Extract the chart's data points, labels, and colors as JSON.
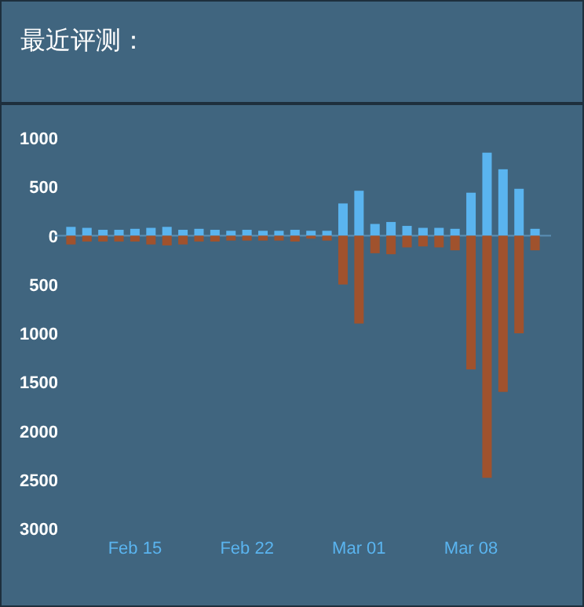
{
  "chart_data": {
    "type": "bar",
    "title": "最近评测：",
    "stacked": true,
    "ref_lines": [
      {
        "axis": "y",
        "value": 0,
        "color": "#5a8fb5"
      }
    ],
    "x": [
      "--02-11",
      "--02-12",
      "--02-13",
      "--02-14",
      "--02-15",
      "--02-16",
      "--02-17",
      "--02-18",
      "--02-19",
      "--02-20",
      "--02-21",
      "--02-22",
      "--02-23",
      "--02-24",
      "--02-25",
      "--02-26",
      "--02-27",
      "--02-28",
      "--03-01",
      "--03-02",
      "--03-03",
      "--03-04",
      "--03-05",
      "--03-06",
      "--03-07",
      "--03-08",
      "--03-09",
      "--03-10",
      "--03-11",
      "--03-12"
    ],
    "series": [
      {
        "color": "#5ab4ef",
        "values": [
          90,
          80,
          60,
          60,
          70,
          80,
          90,
          60,
          70,
          60,
          50,
          60,
          50,
          50,
          60,
          50,
          50,
          330,
          460,
          120,
          140,
          100,
          80,
          80,
          70,
          440,
          850,
          680,
          480,
          70
        ]
      },
      {
        "color": "#a0522d",
        "values": [
          -90,
          -60,
          -60,
          -60,
          -60,
          -90,
          -100,
          -90,
          -60,
          -60,
          -50,
          -50,
          -50,
          -50,
          -60,
          -30,
          -50,
          -500,
          -900,
          -180,
          -190,
          -120,
          -110,
          -120,
          -150,
          -1370,
          -2480,
          -1600,
          -1000,
          -150
        ]
      }
    ],
    "xlim": [
      "--02-10",
      "--03-13"
    ],
    "xticks": [
      {
        "value": "--02-15",
        "label": "Feb 15"
      },
      {
        "value": "--02-22",
        "label": "Feb 22"
      },
      {
        "value": "--03-01",
        "label": "Mar 01"
      },
      {
        "value": "--03-08",
        "label": "Mar 08"
      }
    ],
    "ylim": [
      -3000,
      1000
    ],
    "yticks": [
      1000,
      500,
      0,
      {
        "value": -500,
        "label": "500"
      },
      {
        "value": -1000,
        "label": "1000"
      },
      {
        "value": -1500,
        "label": "1500"
      },
      {
        "value": -2000,
        "label": "2000"
      },
      {
        "value": -2500,
        "label": "2500"
      },
      {
        "value": -3000,
        "label": "3000"
      }
    ]
  }
}
